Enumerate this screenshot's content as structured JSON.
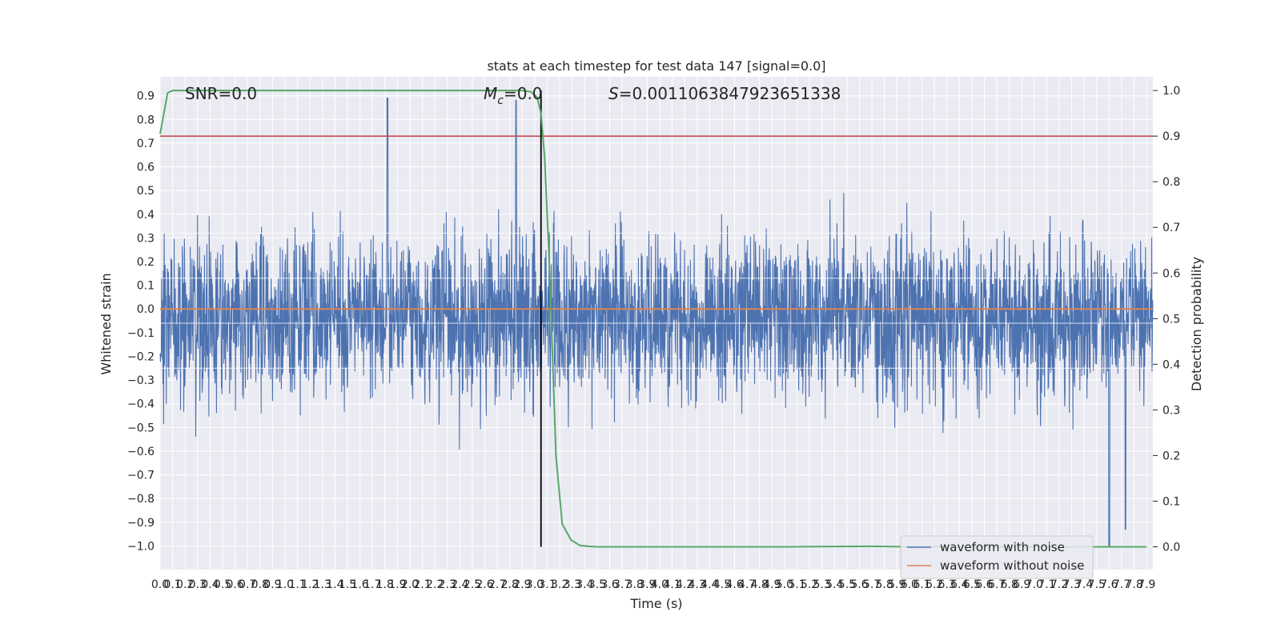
{
  "chart_data": {
    "type": "line",
    "title": "stats at each timestep for test data 147 [signal=0.0]",
    "xlabel": "Time (s)",
    "ylabel_left": "Whitened strain",
    "ylabel_right": "Detection probability",
    "xlim": [
      0,
      7.95
    ],
    "ylim_left": [
      -1.1,
      0.98
    ],
    "ylim_right": [
      -0.05,
      1.03
    ],
    "x_ticks": [
      "0.0",
      "0.1",
      "0.2",
      "0.3",
      "0.4",
      "0.5",
      "0.6",
      "0.7",
      "0.8",
      "0.9",
      "1.0",
      "1.1",
      "1.2",
      "1.3",
      "1.4",
      "1.5",
      "1.6",
      "1.7",
      "1.8",
      "1.9",
      "2.0",
      "2.1",
      "2.2",
      "2.3",
      "2.4",
      "2.5",
      "2.6",
      "2.7",
      "2.8",
      "2.9",
      "3.0",
      "3.1",
      "3.2",
      "3.3",
      "3.4",
      "3.5",
      "3.6",
      "3.7",
      "3.8",
      "3.9",
      "4.0",
      "4.1",
      "4.2",
      "4.3",
      "4.4",
      "4.5",
      "4.6",
      "4.7",
      "4.8",
      "4.9",
      "5.0",
      "5.1",
      "5.2",
      "5.3",
      "5.4",
      "5.5",
      "5.6",
      "5.7",
      "5.8",
      "5.9",
      "6.0",
      "6.1",
      "6.2",
      "6.3",
      "6.4",
      "6.5",
      "6.6",
      "6.7",
      "6.8",
      "6.9",
      "7.0",
      "7.1",
      "7.2",
      "7.3",
      "7.4",
      "7.5",
      "7.6",
      "7.7",
      "7.8",
      "7.9"
    ],
    "y_ticks_left": [
      "0.9",
      "0.8",
      "0.7",
      "0.6",
      "0.5",
      "0.4",
      "0.3",
      "0.2",
      "0.1",
      "0.0",
      "−0.1",
      "−0.2",
      "−0.3",
      "−0.4",
      "−0.5",
      "−0.6",
      "−0.7",
      "−0.8",
      "−0.9",
      "−1.0"
    ],
    "y_ticks_right": [
      "1.0",
      "0.9",
      "0.8",
      "0.7",
      "0.6",
      "0.5",
      "0.4",
      "0.3",
      "0.2",
      "0.1",
      "0.0"
    ],
    "annotations": {
      "snr": "SNR=0.0",
      "mc_symbol": "M",
      "mc_sub": "c",
      "mc_value": "=0.0",
      "s_symbol": "S",
      "s_value": "=0.0011063847923651338"
    },
    "threshold_right": 0.9,
    "threshold_color": "#c44e52",
    "vline_x": 3.05,
    "noise_envelope": {
      "approx_upper_range": [
        0.3,
        0.89
      ],
      "approx_lower_range": [
        -1.0,
        -0.25
      ],
      "notable_peaks": [
        {
          "x": 1.82,
          "y": 0.89
        },
        {
          "x": 2.85,
          "y": 0.88
        },
        {
          "x": 7.6,
          "y": -1.0
        },
        {
          "x": 7.73,
          "y": -0.93
        }
      ]
    },
    "series": [
      {
        "name": "waveform with noise",
        "axis": "left",
        "color": "#4c72b0"
      },
      {
        "name": "waveform without noise",
        "axis": "left",
        "color": "#dd8452",
        "x": [
          0,
          7.95
        ],
        "y": [
          0.0,
          0.0
        ]
      },
      {
        "name": "detection probability",
        "axis": "right",
        "color": "#55a868",
        "x": [
          0.0,
          0.06,
          0.1,
          0.15,
          0.3,
          1.0,
          2.0,
          2.8,
          2.9,
          2.97,
          3.02,
          3.05,
          3.08,
          3.12,
          3.17,
          3.22,
          3.29,
          3.36,
          3.43,
          3.5,
          3.6,
          4.0,
          5.0,
          5.7,
          6.0,
          7.0,
          7.9
        ],
        "y": [
          0.905,
          0.995,
          1.0,
          1.0,
          1.0,
          1.0,
          1.0,
          1.0,
          1.0,
          0.997,
          0.985,
          0.95,
          0.85,
          0.6,
          0.2,
          0.05,
          0.015,
          0.003,
          0.001,
          0.0,
          0.0,
          0.0,
          0.0,
          0.001,
          0.0,
          0.0,
          0.0
        ]
      }
    ],
    "legend": {
      "position": "lower-right",
      "entries": [
        {
          "label": "waveform with noise",
          "color": "#4c72b0"
        },
        {
          "label": "waveform without noise",
          "color": "#dd8452"
        }
      ]
    }
  }
}
